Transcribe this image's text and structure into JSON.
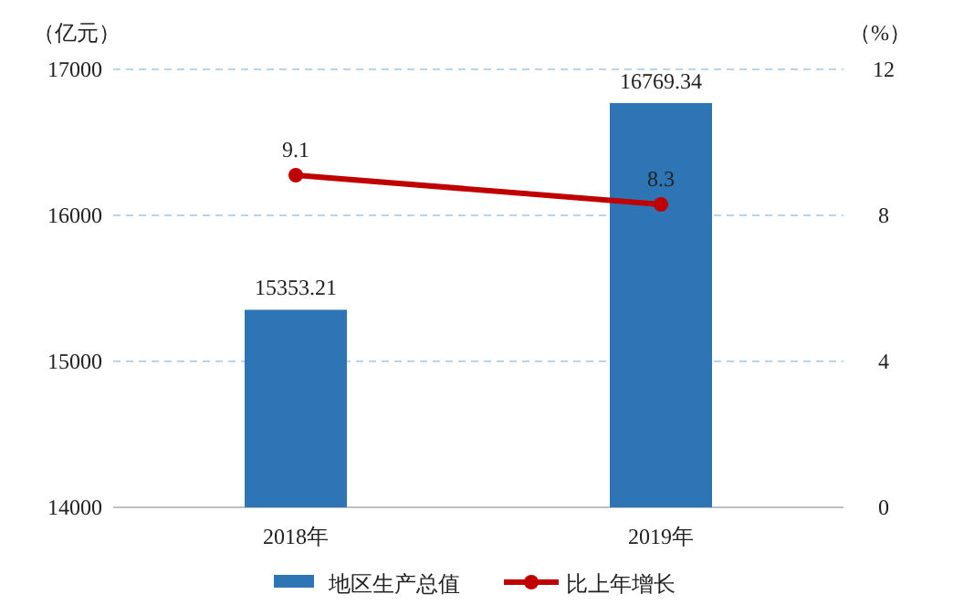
{
  "chart_data": {
    "type": "bar",
    "categories": [
      "2018年",
      "2019年"
    ],
    "ylabel": "（亿元）",
    "y2label": "（%）",
    "ylim": [
      14000,
      17000
    ],
    "yticks": [
      14000,
      15000,
      16000,
      17000
    ],
    "y2lim": [
      0,
      12
    ],
    "y2ticks": [
      0,
      4,
      8,
      12
    ],
    "series": [
      {
        "name": "地区生产总值",
        "color": "#2e75b6",
        "values": [
          15353.21,
          16769.34
        ]
      },
      {
        "name": "比上年增长",
        "type": "line",
        "axis": "y2",
        "color": "#c00000",
        "values": [
          9.1,
          8.3
        ]
      }
    ],
    "data_labels": true,
    "grid": "y",
    "legend": "bottom",
    "marker": "circle",
    "line_style": "solid"
  }
}
